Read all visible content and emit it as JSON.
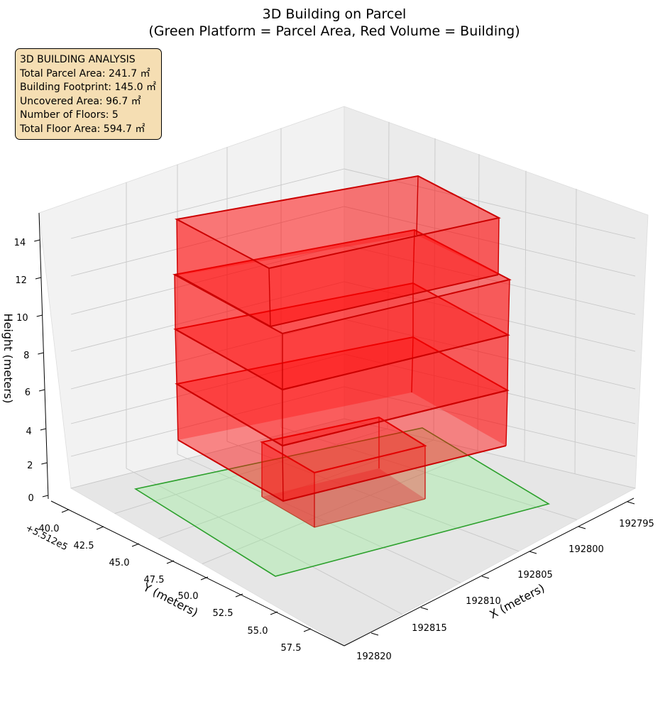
{
  "chart_data": {
    "type": "3d-box",
    "title_lines": [
      "3D Building on Parcel",
      "(Green Platform = Parcel Area, Red Volume = Building)"
    ],
    "xlabel": "X (meters)",
    "ylabel": "Y (meters)",
    "zlabel": "Height (meters)",
    "y_offset_label": "+5.512e5",
    "x_ticks": [
      "192795",
      "192800",
      "192805",
      "192810",
      "192815",
      "192820"
    ],
    "y_ticks": [
      "40.0",
      "42.5",
      "45.0",
      "47.5",
      "50.0",
      "52.5",
      "55.0",
      "57.5"
    ],
    "z_ticks": [
      "0",
      "2",
      "4",
      "6",
      "8",
      "10",
      "12",
      "14"
    ],
    "parcel_color": "#2ca02c",
    "parcel_fill": "#90ee90",
    "building_color": "#ff0000",
    "floors": 5
  },
  "info_box": {
    "lines": [
      "3D BUILDING ANALYSIS",
      "Total Parcel Area: 241.7 ㎡",
      "Building Footprint: 145.0 ㎡",
      "Uncovered Area: 96.7 ㎡",
      "Number of Floors: 5",
      "Total Floor Area: 594.7 ㎡"
    ]
  }
}
